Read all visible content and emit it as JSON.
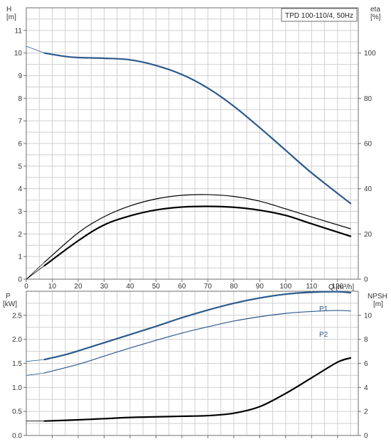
{
  "chart_data": [
    {
      "type": "line",
      "title": "TPD 100-110/4, 50Hz",
      "xlabel": "Q [m³/h]",
      "ylabel": "H\n[m]",
      "y2label": "eta\n[%]",
      "xlim": [
        0,
        128
      ],
      "ylim": [
        0,
        12
      ],
      "y2lim": [
        0,
        120
      ],
      "x_ticks": [
        0,
        10,
        20,
        30,
        40,
        50,
        60,
        70,
        80,
        90,
        100,
        110,
        120
      ],
      "y_ticks": [
        0,
        1,
        2,
        3,
        4,
        5,
        6,
        7,
        8,
        9,
        10,
        11
      ],
      "y2_ticks": [
        0,
        20,
        40,
        60,
        80,
        100
      ],
      "grid": true,
      "series": [
        {
          "axis": "left",
          "color": "#2c5a8c",
          "width": 2.2,
          "x": [
            0,
            7,
            15,
            20,
            30,
            40,
            50,
            60,
            70,
            80,
            90,
            100,
            110,
            125
          ],
          "y": [
            10.3,
            10.0,
            9.85,
            9.8,
            9.77,
            9.7,
            9.45,
            9.05,
            8.45,
            7.65,
            6.7,
            5.7,
            4.7,
            3.35
          ]
        },
        {
          "axis": "right",
          "color": "#000000",
          "width": 1.2,
          "x": [
            0,
            7,
            20,
            30,
            40,
            50,
            60,
            70,
            80,
            90,
            100,
            110,
            125
          ],
          "y": [
            0,
            7.5,
            20.5,
            27.6,
            32.4,
            35.5,
            37.1,
            37.4,
            36.6,
            34.5,
            31.1,
            27.5,
            22.3
          ]
        },
        {
          "axis": "right",
          "color": "#000000",
          "width": 2.2,
          "x": [
            0,
            7,
            20,
            30,
            40,
            50,
            60,
            70,
            80,
            90,
            100,
            110,
            125
          ],
          "y": [
            0,
            6,
            17,
            24,
            28,
            30.6,
            31.9,
            32.2,
            31.8,
            30.5,
            28.2,
            24.5,
            19
          ]
        }
      ]
    },
    {
      "type": "line",
      "xlabel": "",
      "ylabel": "P\n[kW]",
      "y2label": "NPSH\n[m]",
      "xlim": [
        0,
        128
      ],
      "ylim": [
        0,
        3
      ],
      "y2lim": [
        0,
        12
      ],
      "y_ticks": [
        0,
        0.5,
        1.0,
        1.5,
        2.0,
        2.5
      ],
      "y2_ticks": [
        0,
        2,
        4,
        6,
        8,
        10
      ],
      "grid": true,
      "series": [
        {
          "name": "P1",
          "axis": "left",
          "color": "#2c5a8c",
          "width": 2.2,
          "x": [
            0,
            7,
            15,
            20,
            30,
            40,
            50,
            60,
            70,
            80,
            90,
            100,
            110,
            120,
            125
          ],
          "y": [
            1.54,
            1.58,
            1.68,
            1.76,
            1.93,
            2.1,
            2.27,
            2.45,
            2.61,
            2.75,
            2.86,
            2.94,
            2.98,
            2.99,
            2.97
          ]
        },
        {
          "name": "P2",
          "axis": "left",
          "color": "#2c5a8c",
          "width": 1.2,
          "x": [
            0,
            7,
            20,
            30,
            40,
            50,
            60,
            70,
            80,
            90,
            100,
            110,
            120,
            125
          ],
          "y": [
            1.25,
            1.3,
            1.48,
            1.65,
            1.82,
            1.98,
            2.13,
            2.26,
            2.38,
            2.47,
            2.54,
            2.58,
            2.6,
            2.59
          ]
        },
        {
          "name": "NPSH",
          "axis": "right",
          "color": "#000000",
          "width": 2.2,
          "x": [
            0,
            7,
            20,
            30,
            40,
            50,
            60,
            70,
            80,
            90,
            100,
            110,
            120,
            125
          ],
          "y": [
            1.2,
            1.2,
            1.3,
            1.4,
            1.5,
            1.55,
            1.6,
            1.65,
            1.85,
            2.4,
            3.5,
            4.8,
            6.1,
            6.45
          ]
        }
      ],
      "series_labels": [
        "P1",
        "P2"
      ]
    }
  ]
}
